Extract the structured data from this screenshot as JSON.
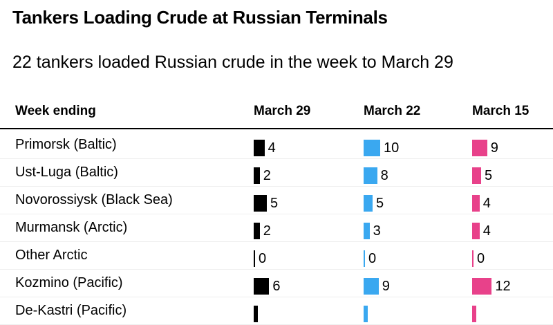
{
  "title": "Tankers Loading Crude at Russian Terminals",
  "subtitle": "22 tankers loaded Russian crude in the week to March 29",
  "chart_data": {
    "type": "table",
    "header": "Week ending",
    "columns": [
      {
        "name": "March 29",
        "color": "#000000"
      },
      {
        "name": "March 22",
        "color": "#3aa8f0"
      },
      {
        "name": "March 15",
        "color": "#e8418a"
      }
    ],
    "rows": [
      {
        "label": "Primorsk (Baltic)",
        "values": [
          4,
          10,
          9
        ]
      },
      {
        "label": "Ust-Luga (Baltic)",
        "values": [
          2,
          8,
          5
        ]
      },
      {
        "label": "Novorossiysk (Black Sea)",
        "values": [
          5,
          5,
          4
        ]
      },
      {
        "label": "Murmansk (Arctic)",
        "values": [
          2,
          3,
          4
        ]
      },
      {
        "label": "Other Arctic",
        "values": [
          0,
          0,
          0
        ]
      },
      {
        "label": "Kozmino (Pacific)",
        "values": [
          6,
          9,
          12
        ]
      },
      {
        "label": "De-Kastri (Pacific)",
        "values": [
          null,
          null,
          null
        ]
      }
    ]
  }
}
